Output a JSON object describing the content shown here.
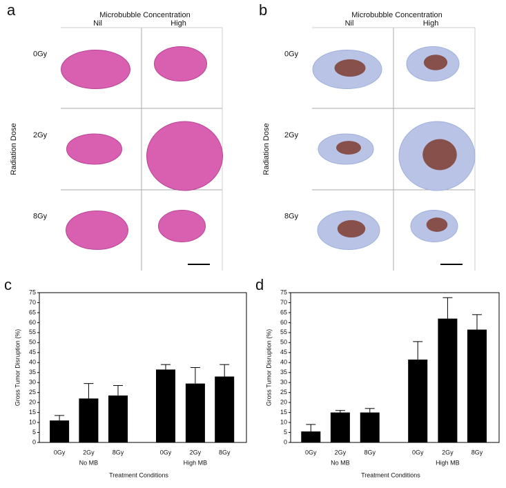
{
  "image_panels": [
    {
      "label": "a",
      "column_title": "Microbubble Concentration",
      "columns": [
        "Nil",
        "High"
      ],
      "row_title": "Radiation Dose",
      "rows": [
        "0Gy",
        "2Gy",
        "8Gy"
      ]
    },
    {
      "label": "b",
      "column_title": "Microbubble Concentration",
      "columns": [
        "Nil",
        "High"
      ],
      "row_title": "Radiation Dose",
      "rows": [
        "0Gy",
        "2Gy",
        "8Gy"
      ]
    }
  ],
  "chart_data": [
    {
      "type": "bar",
      "panel_label": "c",
      "x_label": "Treatment Conditions",
      "y_label": "Gross Tumor Disruption (%)",
      "categories": [
        "0Gy",
        "2Gy",
        "8Gy",
        "0Gy",
        "2Gy",
        "8Gy"
      ],
      "groups": [
        "No MB",
        "High MB"
      ],
      "values": [
        11,
        22,
        23.5,
        36.5,
        29.5,
        33
      ],
      "errors": [
        2.5,
        7.5,
        5,
        2.5,
        8,
        6
      ],
      "color": "#000000",
      "ylim": [
        0,
        75
      ],
      "yticks": [
        0,
        5,
        10,
        15,
        20,
        25,
        30,
        35,
        40,
        45,
        50,
        55,
        60,
        65,
        70,
        75
      ]
    },
    {
      "type": "bar",
      "panel_label": "d",
      "x_label": "Treatment Conditions",
      "y_label": "Gross Tumor Disruption (%)",
      "categories": [
        "0Gy",
        "2Gy",
        "8Gy",
        "0Gy",
        "2Gy",
        "8Gy"
      ],
      "groups": [
        "No MB",
        "High MB"
      ],
      "values": [
        5.5,
        15,
        15,
        41.5,
        62,
        56.5
      ],
      "errors": [
        3.5,
        1,
        2,
        9,
        10.5,
        7.5
      ],
      "color": "#000000",
      "ylim": [
        0,
        75
      ],
      "yticks": [
        0,
        5,
        10,
        15,
        20,
        25,
        30,
        35,
        40,
        45,
        50,
        55,
        60,
        65,
        70,
        75
      ]
    }
  ]
}
